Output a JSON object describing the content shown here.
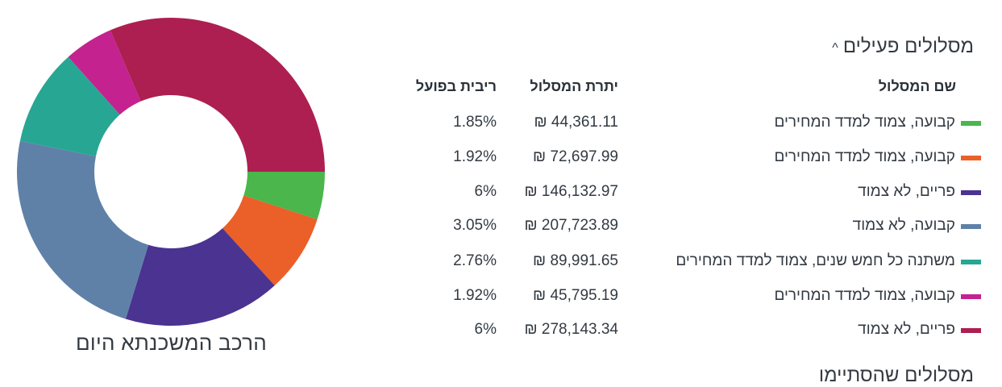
{
  "section": {
    "title": "מסלולים פעילים",
    "caret": "^",
    "next_section_title_partial": "מסלולים שהסתיימו"
  },
  "table": {
    "headers": {
      "name": "שם המסלול",
      "balance": "יתרת המסלול",
      "rate": "ריבית בפועל"
    },
    "rows": [
      {
        "name": "קבועה, צמוד למדד המחירים",
        "balance": "₪ 44,361.11",
        "rate": "1.85%",
        "color": "#4ab64b"
      },
      {
        "name": "קבועה, צמוד למדד המחירים",
        "balance": "₪ 72,697.99",
        "rate": "1.92%",
        "color": "#eb5f28"
      },
      {
        "name": "פריים, לא צמוד",
        "balance": "₪ 146,132.97",
        "rate": "6%",
        "color": "#4a3391"
      },
      {
        "name": "קבועה, לא צמוד",
        "balance": "₪ 207,723.89",
        "rate": "3.05%",
        "color": "#5f81a8"
      },
      {
        "name": "משתנה כל חמש שנים, צמוד למדד המחירים",
        "balance": "₪ 89,991.65",
        "rate": "2.76%",
        "color": "#27a693"
      },
      {
        "name": "קבועה, צמוד למדד המחירים",
        "balance": "₪ 45,795.19",
        "rate": "1.92%",
        "color": "#c3228f"
      },
      {
        "name": "פריים, לא צמוד",
        "balance": "₪ 278,143.34",
        "rate": "6%",
        "color": "#ad1f50"
      }
    ]
  },
  "chart_data": {
    "type": "pie",
    "donut": true,
    "title": "הרכב המשכנתא היום",
    "start_angle": "3 o'clock, clockwise",
    "categories": [
      "קבועה, צמוד למדד המחירים",
      "קבועה, צמוד למדד המחירים",
      "פריים, לא צמוד",
      "קבועה, לא צמוד",
      "משתנה כל חמש שנים, צמוד למדד המחירים",
      "קבועה, צמוד למדד המחירים",
      "פריים, לא צמוד"
    ],
    "values": [
      44361.11,
      72697.99,
      146132.97,
      207723.89,
      89991.65,
      45795.19,
      278143.34
    ],
    "rates": [
      "1.85%",
      "1.92%",
      "6%",
      "3.05%",
      "2.76%",
      "1.92%",
      "6%"
    ],
    "colors": [
      "#4ab64b",
      "#eb5f28",
      "#4a3391",
      "#5f81a8",
      "#27a693",
      "#c3228f",
      "#ad1f50"
    ],
    "currency": "₪"
  }
}
